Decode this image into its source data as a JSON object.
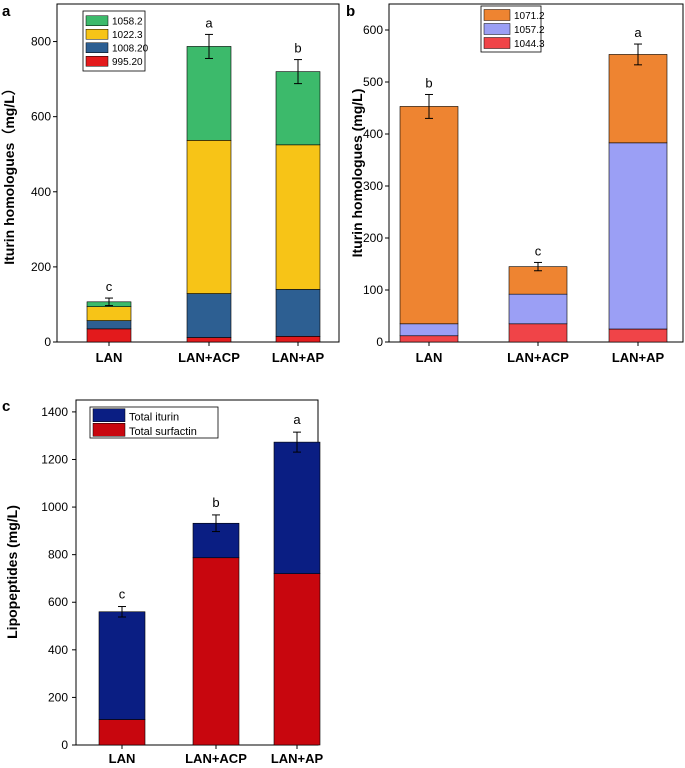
{
  "chart_data": [
    {
      "id": "a",
      "type": "bar",
      "stacked": true,
      "panel_label": "a",
      "ylabel": "Iturin homologues（mg/L）",
      "ylim": [
        0,
        900
      ],
      "yticks": [
        0,
        200,
        400,
        600,
        800
      ],
      "categories": [
        "LAN",
        "LAN+ACP",
        "LAN+AP"
      ],
      "series": [
        {
          "name": "995.20",
          "color": "#e31a1c",
          "values": [
            35,
            12,
            15
          ]
        },
        {
          "name": "1008.20",
          "color": "#2d5f92",
          "values": [
            22,
            117,
            125
          ]
        },
        {
          "name": "1022.3",
          "color": "#f7c417",
          "values": [
            37,
            408,
            385
          ]
        },
        {
          "name": "1058.2",
          "color": "#3cba6b",
          "values": [
            13,
            250,
            195
          ]
        }
      ],
      "totals": [
        107,
        787,
        720
      ],
      "errors": [
        10,
        32,
        32
      ],
      "significance": [
        "c",
        "a",
        "b"
      ],
      "legend_order": [
        "1058.2",
        "1022.3",
        "1008.20",
        "995.20"
      ]
    },
    {
      "id": "b",
      "type": "bar",
      "stacked": true,
      "panel_label": "b",
      "ylabel": "Iturin homologues (mg/L)",
      "ylim": [
        0,
        650
      ],
      "yticks": [
        0,
        100,
        200,
        300,
        400,
        500,
        600
      ],
      "categories": [
        "LAN",
        "LAN+ACP",
        "LAN+AP"
      ],
      "series": [
        {
          "name": "1044.3",
          "color": "#f04448",
          "values": [
            12,
            35,
            25
          ]
        },
        {
          "name": "1057.2",
          "color": "#9b9ff5",
          "values": [
            23,
            57,
            358
          ]
        },
        {
          "name": "1071.2",
          "color": "#ee8431",
          "values": [
            418,
            53,
            170
          ]
        }
      ],
      "totals": [
        453,
        145,
        553
      ],
      "errors": [
        23,
        8,
        20
      ],
      "significance": [
        "b",
        "c",
        "a"
      ],
      "legend_order": [
        "1071.2",
        "1057.2",
        "1044.3"
      ]
    },
    {
      "id": "c",
      "type": "bar",
      "stacked": true,
      "panel_label": "c",
      "ylabel": "Lipopeptides (mg/L)",
      "ylim": [
        0,
        1450
      ],
      "yticks": [
        0,
        200,
        400,
        600,
        800,
        1000,
        1200,
        1400
      ],
      "categories": [
        "LAN",
        "LAN+ACP",
        "LAN+AP"
      ],
      "series": [
        {
          "name": "Total surfactin",
          "color": "#c8060e",
          "values": [
            107,
            787,
            720
          ]
        },
        {
          "name": "Total iturin",
          "color": "#0a1e83",
          "values": [
            453,
            145,
            553
          ]
        }
      ],
      "totals": [
        560,
        932,
        1273
      ],
      "errors": [
        22,
        35,
        42
      ],
      "significance": [
        "c",
        "b",
        "a"
      ],
      "legend_order": [
        "Total iturin",
        "Total surfactin"
      ]
    }
  ]
}
